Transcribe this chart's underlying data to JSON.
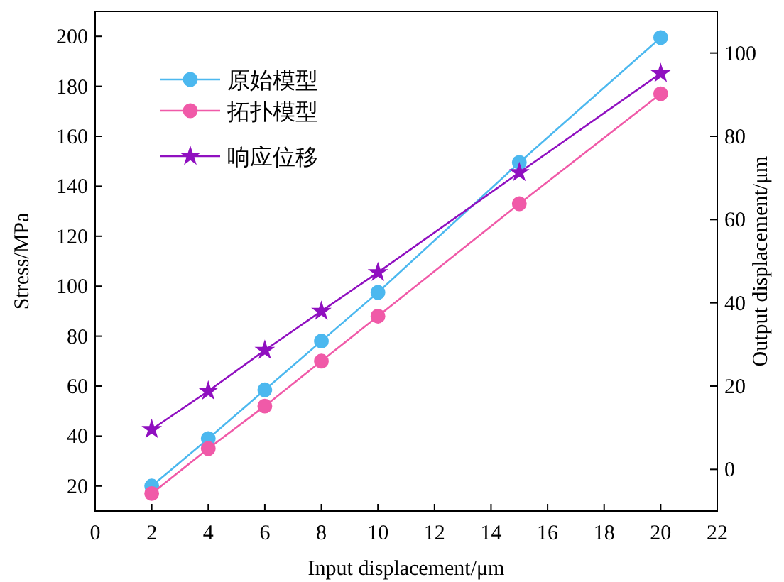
{
  "chart_data": {
    "type": "line",
    "xlabel": "Input displacement/μm",
    "ylabel": "Stress/MPa",
    "y2label": "Output displacement/μm",
    "x": [
      2,
      4,
      6,
      8,
      10,
      15,
      20
    ],
    "series": [
      {
        "name": "原始模型",
        "color": "#4cb8ef",
        "marker": "circle",
        "values": [
          20,
          39,
          58.5,
          78,
          97.5,
          149.5,
          199.5
        ]
      },
      {
        "name": "拓扑模型",
        "color": "#f05aa8",
        "marker": "circle",
        "values": [
          17,
          35,
          52,
          70,
          88,
          133,
          177
        ]
      },
      {
        "name": "响应位移",
        "color": "#9010c0",
        "marker": "star",
        "axis": "y2",
        "values": [
          9.6,
          18.8,
          28.6,
          38,
          47.3,
          71.3,
          95.1
        ]
      }
    ],
    "xlim": [
      0,
      22
    ],
    "xticks": [
      0,
      2,
      4,
      6,
      8,
      10,
      12,
      14,
      16,
      18,
      20,
      22
    ],
    "ylim": [
      10,
      210
    ],
    "yticks": [
      20,
      40,
      60,
      80,
      100,
      120,
      140,
      160,
      180,
      200
    ],
    "y2lim": [
      -10,
      110
    ],
    "y2ticks": [
      0,
      20,
      40,
      60,
      80,
      100
    ],
    "grid": false,
    "legend": "top left",
    "line_style": "solid"
  }
}
